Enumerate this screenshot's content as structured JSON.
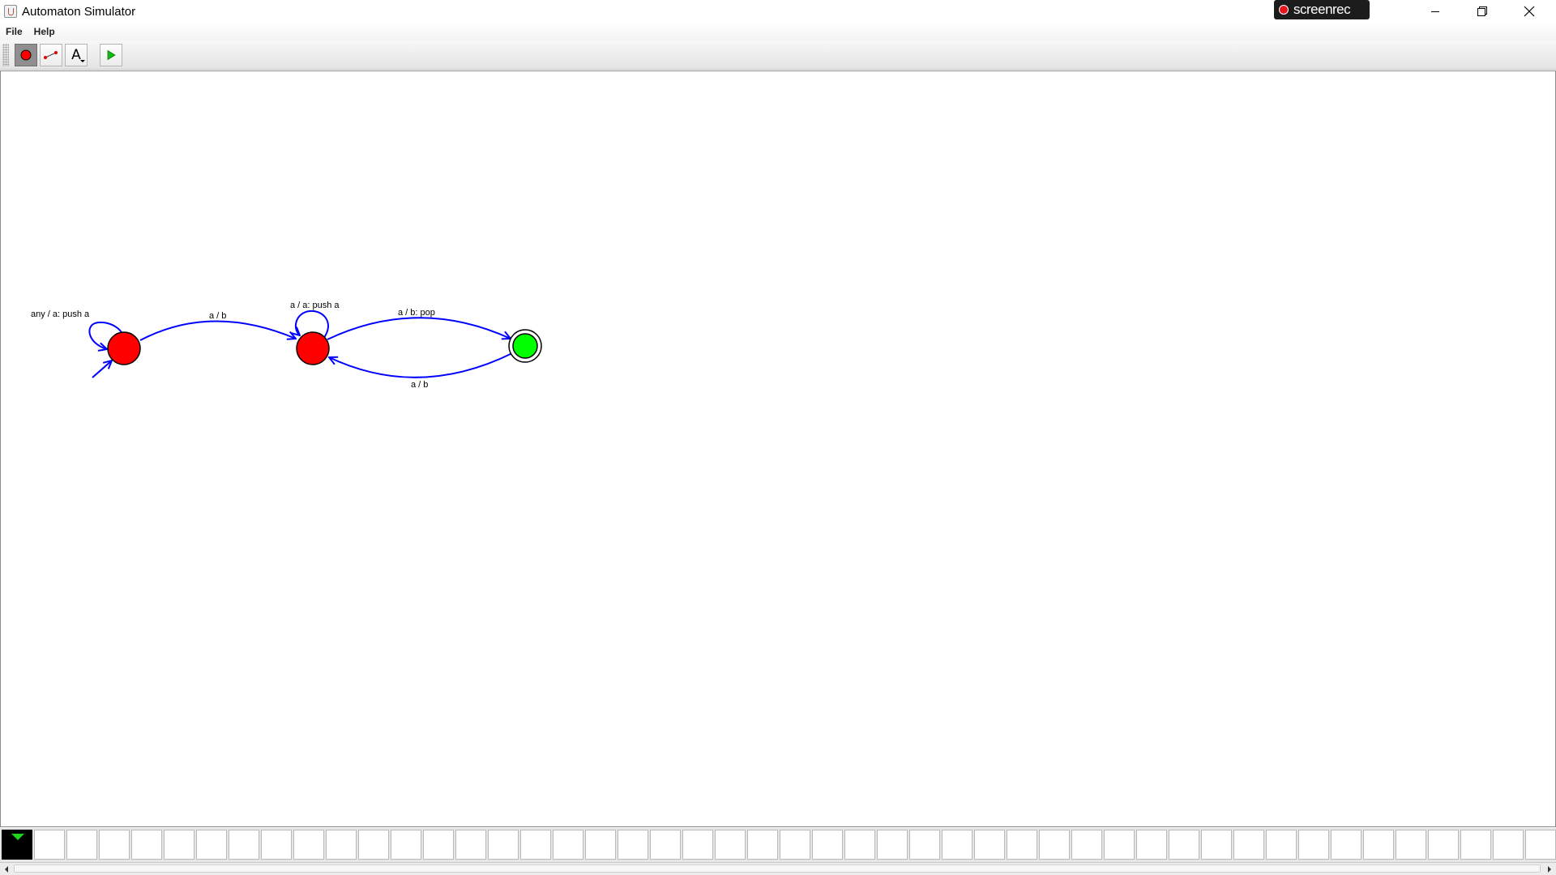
{
  "window": {
    "title": "Automaton Simulator",
    "recorder_badge": "screenrec",
    "controls": [
      "minimize-icon",
      "restore-icon",
      "close-icon"
    ]
  },
  "menu": {
    "file_label": "File",
    "help_label": "Help"
  },
  "toolbar": {
    "tools": [
      {
        "name": "add-state-tool",
        "icon": "red-circle-icon",
        "selected": true
      },
      {
        "name": "add-transition-tool",
        "icon": "transition-arrow-icon",
        "selected": false
      },
      {
        "name": "add-text-tool",
        "icon": "text-a-icon",
        "glyph": "A",
        "selected": false
      },
      {
        "name": "run-tool",
        "icon": "play-icon",
        "selected": false
      }
    ]
  },
  "automaton": {
    "states": [
      {
        "id": "q0",
        "initial": true,
        "accepting": false,
        "color": "#ff0000"
      },
      {
        "id": "q1",
        "initial": false,
        "accepting": false,
        "color": "#ff0000"
      },
      {
        "id": "q2",
        "initial": false,
        "accepting": true,
        "color": "#00ff00"
      }
    ],
    "transitions": [
      {
        "from": "q0",
        "to": "q0",
        "label": "any / a: push a"
      },
      {
        "from": "q0",
        "to": "q1",
        "label": "a / b"
      },
      {
        "from": "q1",
        "to": "q1",
        "label": "a / a: push a"
      },
      {
        "from": "q1",
        "to": "q2",
        "label": "a / b: pop"
      },
      {
        "from": "q2",
        "to": "q1",
        "label": "a / b"
      }
    ],
    "edge_color": "#0000ff"
  },
  "tape": {
    "head_position": 0,
    "cells": [
      "",
      "",
      "",
      "",
      "",
      "",
      "",
      "",
      "",
      "",
      "",
      "",
      "",
      "",
      "",
      "",
      "",
      "",
      "",
      "",
      "",
      "",
      "",
      "",
      "",
      "",
      "",
      "",
      "",
      "",
      "",
      "",
      "",
      "",
      "",
      "",
      "",
      "",
      "",
      "",
      "",
      "",
      "",
      "",
      "",
      "",
      "",
      ""
    ]
  }
}
